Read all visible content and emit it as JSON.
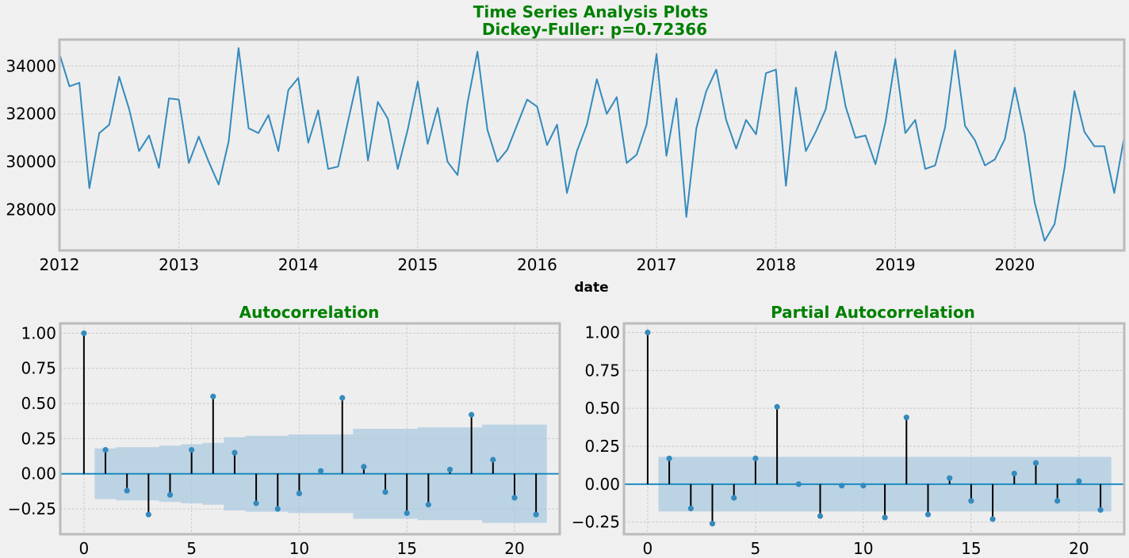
{
  "colors": {
    "figure_bg": "#f0f0f0",
    "axes_bg": "#eeeeee",
    "frame": "#bbbbbb",
    "grid": "#cbcbcb",
    "line": "#348abd",
    "title": "#008000",
    "stem": "#000000",
    "confint": "#a6c8e0"
  },
  "chart_data": [
    {
      "type": "line",
      "title": "Time Series Analysis Plots\n Dickey-Fuller: p=0.72366",
      "xlabel": "date",
      "ylabel": "",
      "x_tick_labels": [
        "2012",
        "2013",
        "2014",
        "2015",
        "2016",
        "2017",
        "2018",
        "2019",
        "2020"
      ],
      "y_tick_labels": [
        "28000",
        "30000",
        "32000",
        "34000"
      ],
      "xlim": [
        "2012-01",
        "2020-12"
      ],
      "ylim": [
        26300,
        35100
      ],
      "grid": true,
      "x_start": "2012-01",
      "x_freq": "monthly",
      "values": [
        34500,
        33150,
        33300,
        28900,
        31200,
        31550,
        33550,
        32200,
        30450,
        31100,
        29750,
        32650,
        32600,
        29950,
        31050,
        30000,
        29050,
        30850,
        34750,
        31400,
        31200,
        31950,
        30450,
        33000,
        33500,
        30800,
        32150,
        29700,
        29800,
        31700,
        33550,
        30050,
        32500,
        31800,
        29700,
        31350,
        33350,
        30750,
        32250,
        30000,
        29450,
        32450,
        34600,
        31350,
        30000,
        30500,
        31550,
        32600,
        32300,
        30700,
        31550,
        28700,
        30450,
        31550,
        33450,
        32000,
        32700,
        29950,
        30300,
        31550,
        34500,
        30250,
        32650,
        27700,
        31400,
        32950,
        33850,
        31750,
        30550,
        31750,
        31150,
        33700,
        33850,
        29000,
        33100,
        30450,
        31250,
        32200,
        34600,
        32300,
        31000,
        31100,
        29900,
        31650,
        34300,
        31200,
        31750,
        29700,
        29850,
        31450,
        34650,
        31500,
        30900,
        29850,
        30100,
        30950,
        33100,
        31150,
        28300,
        26700,
        27400,
        29750,
        32950,
        31250,
        30650,
        30650,
        28700,
        31050
      ]
    },
    {
      "type": "bar",
      "title": "Autocorrelation",
      "xlabel": "",
      "ylabel": "",
      "x_tick_labels": [
        "0",
        "5",
        "10",
        "15",
        "20"
      ],
      "y_tick_labels": [
        "−0.25",
        "0.00",
        "0.25",
        "0.50",
        "0.75",
        "1.00"
      ],
      "xlim": [
        -1.1,
        22.1
      ],
      "ylim": [
        -0.43,
        1.07
      ],
      "grid": true,
      "lags": [
        0,
        1,
        2,
        3,
        4,
        5,
        6,
        7,
        8,
        9,
        10,
        11,
        12,
        13,
        14,
        15,
        16,
        17,
        18,
        19,
        20,
        21
      ],
      "values": [
        1.0,
        0.17,
        -0.12,
        -0.29,
        -0.15,
        0.17,
        0.55,
        0.15,
        -0.21,
        -0.25,
        -0.14,
        0.02,
        0.54,
        0.05,
        -0.13,
        -0.28,
        -0.22,
        0.03,
        0.42,
        0.1,
        -0.17,
        -0.29
      ],
      "confint_band": [
        0.18,
        0.19,
        0.19,
        0.2,
        0.21,
        0.22,
        0.26,
        0.27,
        0.27,
        0.28,
        0.28,
        0.28,
        0.32,
        0.32,
        0.32,
        0.33,
        0.33,
        0.33,
        0.35,
        0.35,
        0.35
      ]
    },
    {
      "type": "bar",
      "title": "Partial Autocorrelation",
      "xlabel": "",
      "ylabel": "",
      "x_tick_labels": [
        "0",
        "5",
        "10",
        "15",
        "20"
      ],
      "y_tick_labels": [
        "−0.25",
        "0.00",
        "0.25",
        "0.50",
        "0.75",
        "1.00"
      ],
      "xlim": [
        -1.1,
        22.1
      ],
      "ylim": [
        -0.33,
        1.06
      ],
      "grid": true,
      "lags": [
        0,
        1,
        2,
        3,
        4,
        5,
        6,
        7,
        8,
        9,
        10,
        11,
        12,
        13,
        14,
        15,
        16,
        17,
        18,
        19,
        20,
        21
      ],
      "values": [
        1.0,
        0.17,
        -0.16,
        -0.26,
        -0.09,
        0.17,
        0.51,
        0.0,
        -0.21,
        -0.01,
        -0.01,
        -0.22,
        0.44,
        -0.2,
        0.04,
        -0.11,
        -0.23,
        0.07,
        0.14,
        -0.11,
        0.02,
        -0.17
      ],
      "confint": 0.18
    }
  ]
}
